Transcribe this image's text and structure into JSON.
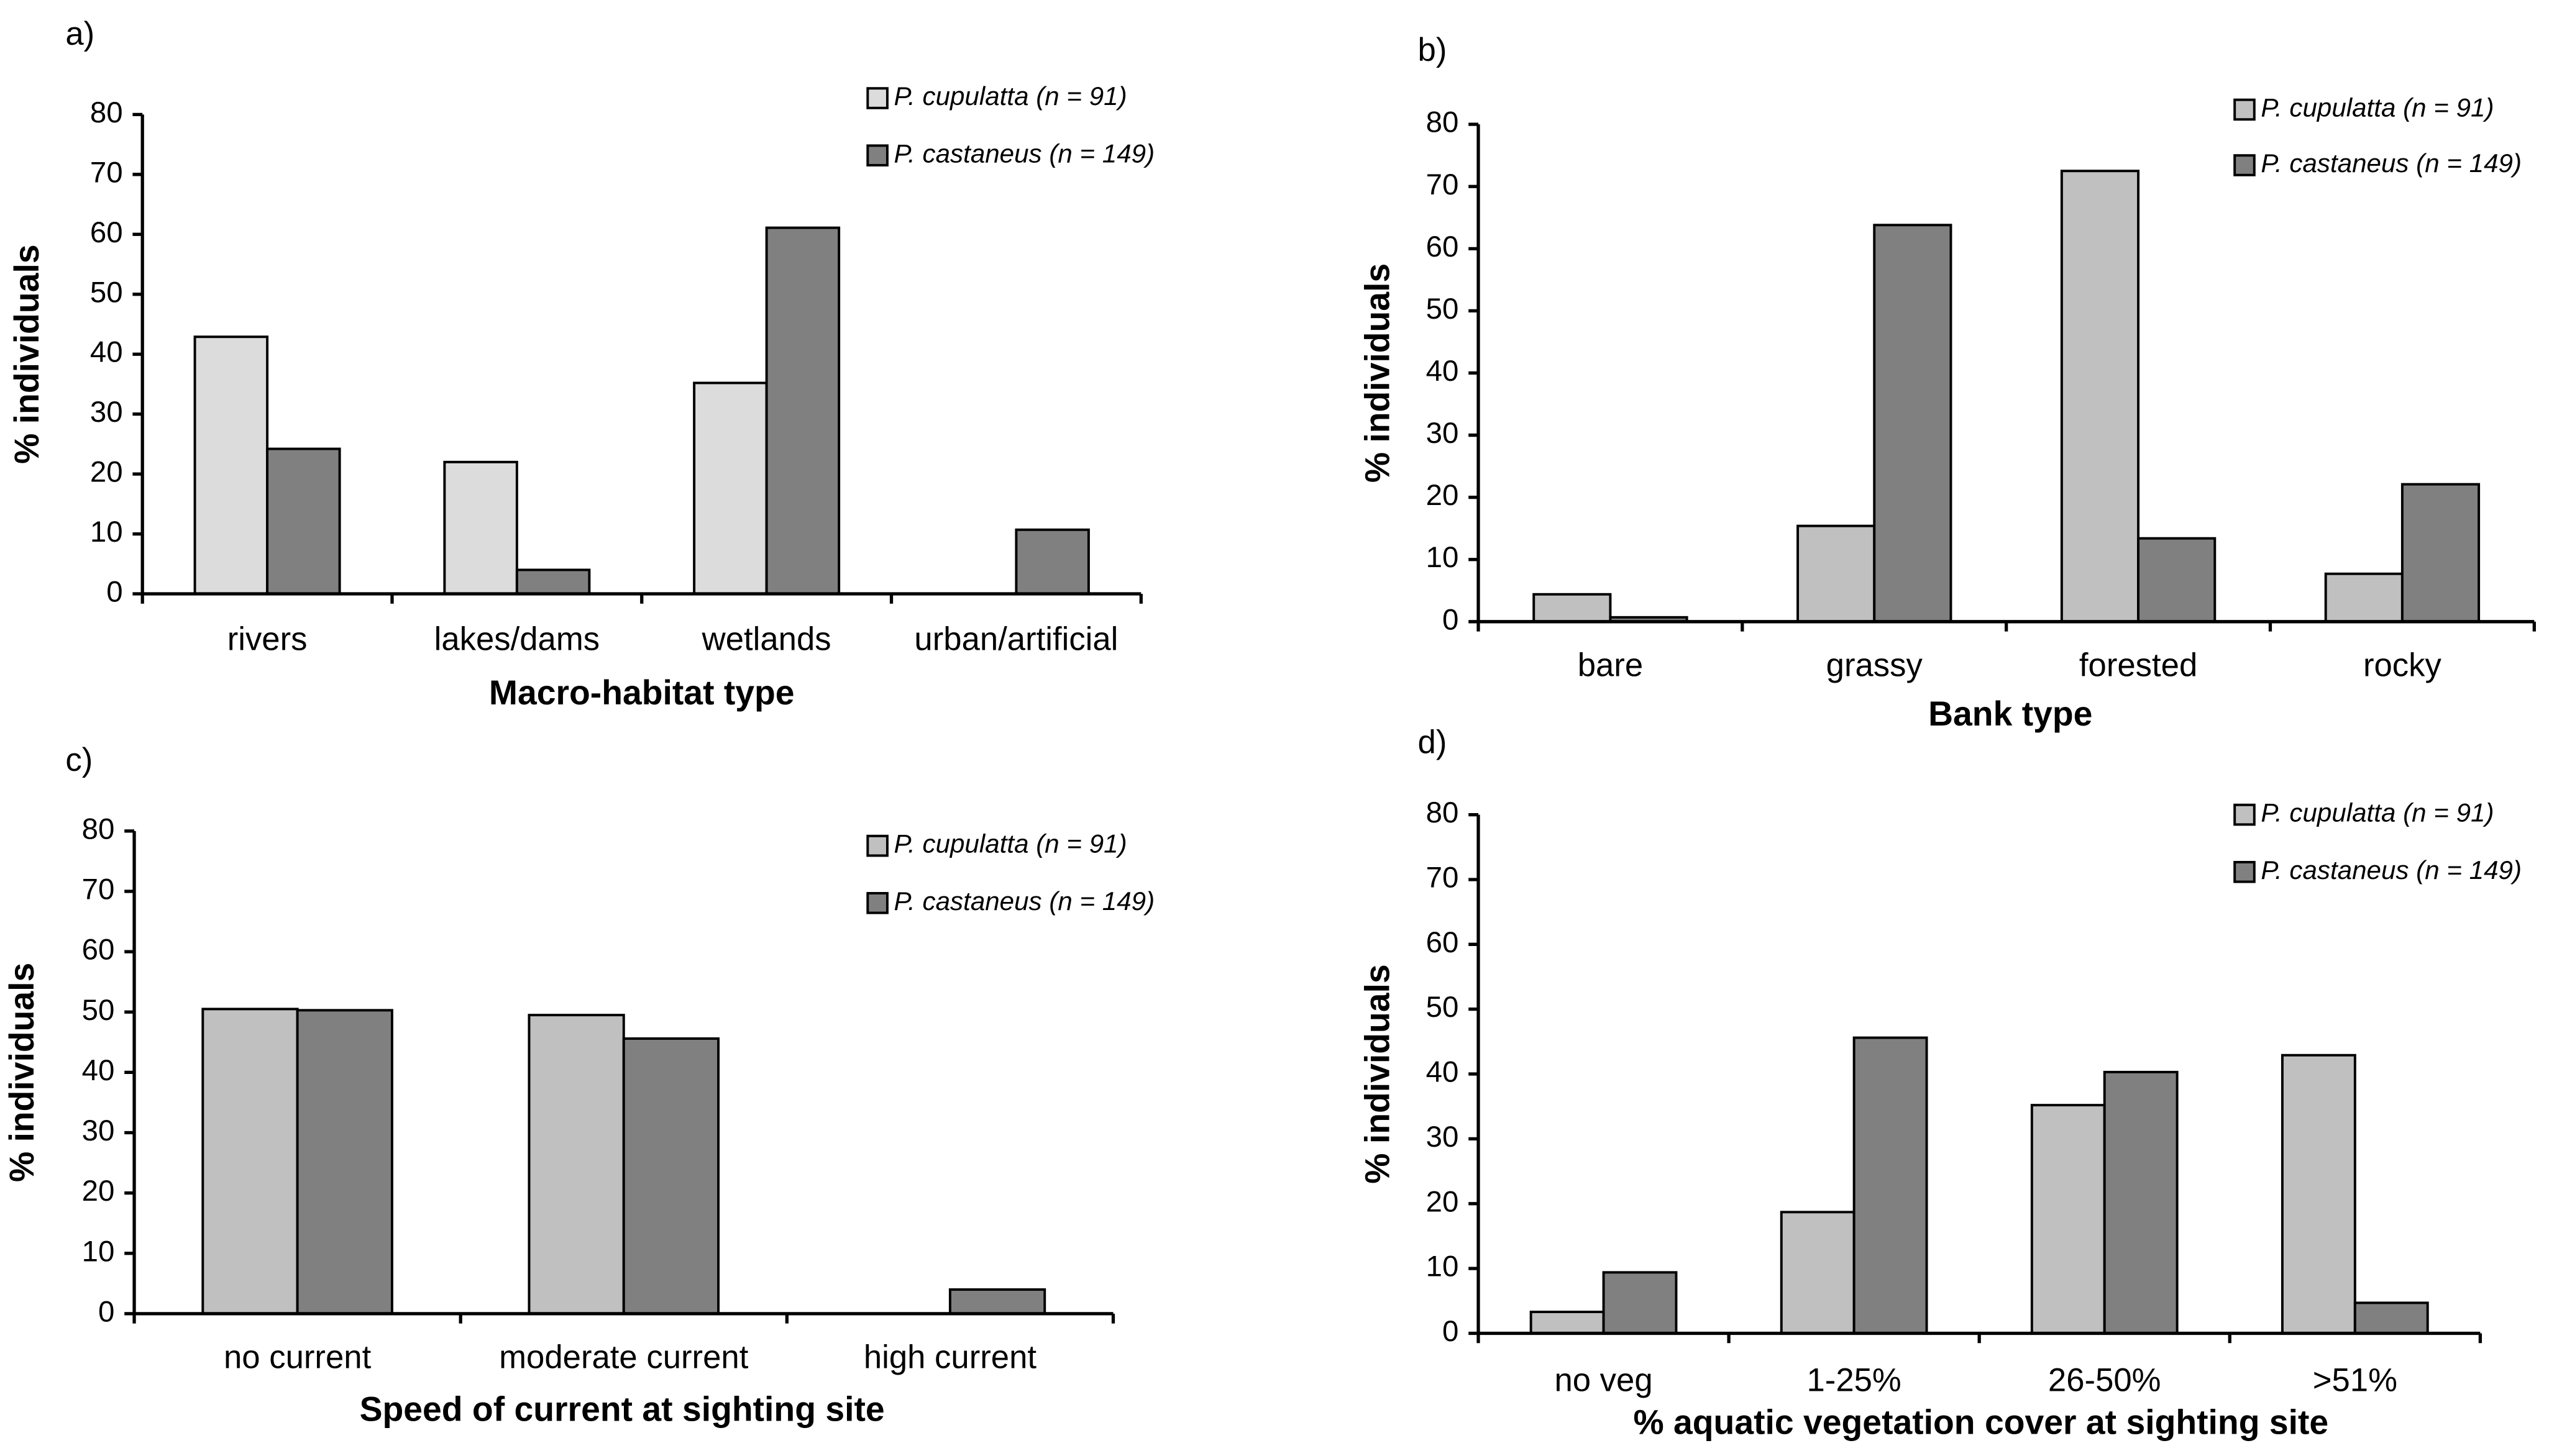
{
  "chart_data": [
    {
      "type": "bar",
      "panel_label": "a)",
      "x_label": "Macro-habitat type",
      "y_label": "% individuals",
      "categories": [
        "rivers",
        "lakes/dams",
        "wetlands",
        "urban/artificial"
      ],
      "series": [
        {
          "name": "P. cupulatta (n = 91)",
          "color": "#dcdcdc",
          "values": [
            42.9,
            22,
            35.2,
            0
          ]
        },
        {
          "name": "P. castaneus (n = 149)",
          "color": "#808080",
          "values": [
            24.2,
            4,
            61.1,
            10.7
          ]
        }
      ],
      "ylim": [
        0,
        80
      ],
      "yticks": [
        0,
        10,
        20,
        30,
        40,
        50,
        60,
        70,
        80
      ],
      "legend": "upper right"
    },
    {
      "type": "bar",
      "panel_label": "b)",
      "x_label": "Bank type",
      "y_label": "% individuals",
      "categories": [
        "bare",
        "grassy",
        "forested",
        "rocky"
      ],
      "series": [
        {
          "name": "P. cupulatta (n = 91)",
          "color": "#c0c0c0",
          "values": [
            4.4,
            15.4,
            72.5,
            7.7
          ]
        },
        {
          "name": "P. castaneus (n = 149)",
          "color": "#808080",
          "values": [
            0.7,
            63.8,
            13.4,
            22.1
          ]
        }
      ],
      "ylim": [
        0,
        80
      ],
      "yticks": [
        0,
        10,
        20,
        30,
        40,
        50,
        60,
        70,
        80
      ],
      "legend": "upper right"
    },
    {
      "type": "bar",
      "panel_label": "c)",
      "x_label": "Speed of current at sighting site",
      "y_label": "% individuals",
      "categories": [
        "no current",
        "moderate current",
        "high current"
      ],
      "series": [
        {
          "name": "P. cupulatta (n = 91)",
          "color": "#c0c0c0",
          "values": [
            50.5,
            49.5,
            0
          ]
        },
        {
          "name": "P. castaneus (n = 149)",
          "color": "#808080",
          "values": [
            50.3,
            45.6,
            4.0
          ]
        }
      ],
      "ylim": [
        0,
        80
      ],
      "yticks": [
        0,
        10,
        20,
        30,
        40,
        50,
        60,
        70,
        80
      ],
      "legend": "upper right"
    },
    {
      "type": "bar",
      "panel_label": "d)",
      "x_label": "% aquatic vegetation cover at sighting site",
      "y_label": "% individuals",
      "categories": [
        "no veg",
        "1-25%",
        "26-50%",
        ">51%"
      ],
      "series": [
        {
          "name": "P. cupulatta (n = 91)",
          "color": "#c0c0c0",
          "values": [
            3.3,
            18.7,
            35.2,
            42.9
          ]
        },
        {
          "name": "P. castaneus (n = 149)",
          "color": "#808080",
          "values": [
            9.4,
            45.6,
            40.3,
            4.7
          ]
        }
      ],
      "ylim": [
        0,
        80
      ],
      "yticks": [
        0,
        10,
        20,
        30,
        40,
        50,
        60,
        70,
        80
      ],
      "legend": "upper right"
    }
  ]
}
